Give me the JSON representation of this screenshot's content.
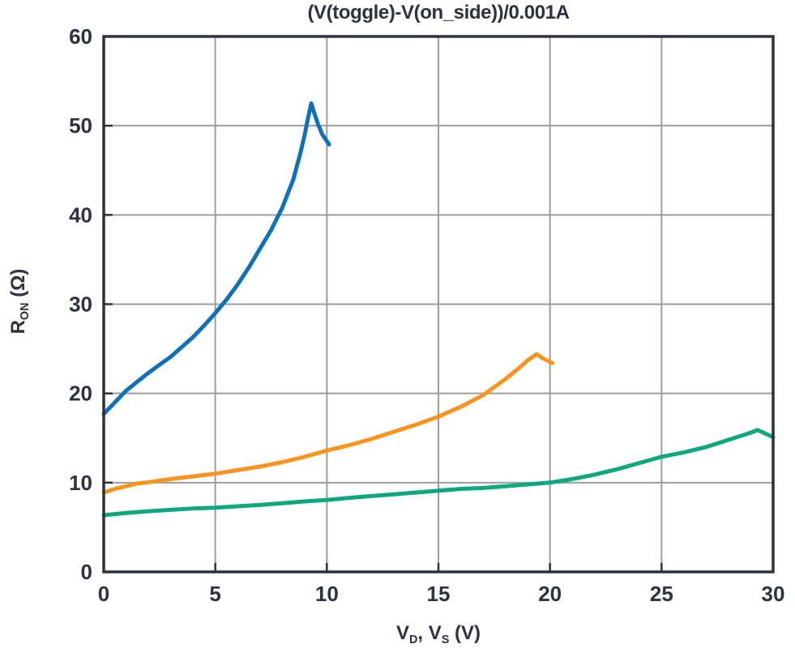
{
  "page": {
    "background": "#ffffff"
  },
  "chart_data": {
    "type": "line",
    "title": "(V(toggle)-V(on_side))/0.001A",
    "ylabel": "R_ON (Ω)",
    "xlabel": "V_D, V_S (V)",
    "ylabel_parts": {
      "v1": "R",
      "sub1": "ON",
      "unit": " (Ω)"
    },
    "xlabel_parts": {
      "v1": "V",
      "sub1": "D",
      "sep": ", ",
      "v2": "V",
      "sub2": "S",
      "unit": " (V)"
    },
    "xlim": [
      0,
      30
    ],
    "ylim": [
      0,
      60
    ],
    "xticks": [
      0,
      5,
      10,
      15,
      20,
      25,
      30
    ],
    "yticks": [
      0,
      10,
      20,
      30,
      40,
      50,
      60
    ],
    "grid": true,
    "legend": "none",
    "colors": {
      "axis": "#2b3240",
      "grid": "#9c9da0",
      "blue": "#1070b8",
      "orange": "#f79420",
      "green": "#0da87d"
    },
    "series": [
      {
        "name": "blue-curve",
        "color_key": "blue",
        "points": [
          [
            0,
            17.7
          ],
          [
            0.5,
            19.0
          ],
          [
            1,
            20.3
          ],
          [
            1.5,
            21.3
          ],
          [
            2,
            22.3
          ],
          [
            2.5,
            23.2
          ],
          [
            3,
            24.1
          ],
          [
            3.5,
            25.2
          ],
          [
            4,
            26.3
          ],
          [
            4.5,
            27.6
          ],
          [
            5,
            29.0
          ],
          [
            5.5,
            30.5
          ],
          [
            6,
            32.2
          ],
          [
            6.5,
            34.1
          ],
          [
            7,
            36.2
          ],
          [
            7.5,
            38.3
          ],
          [
            8,
            40.8
          ],
          [
            8.5,
            44.0
          ],
          [
            8.8,
            46.8
          ],
          [
            9.0,
            48.9
          ],
          [
            9.15,
            50.8
          ],
          [
            9.3,
            52.5
          ],
          [
            9.45,
            51.3
          ],
          [
            9.6,
            50.2
          ],
          [
            9.8,
            49.0
          ],
          [
            10.1,
            47.9
          ]
        ]
      },
      {
        "name": "orange-curve",
        "color_key": "orange",
        "points": [
          [
            0,
            8.9
          ],
          [
            0.5,
            9.3
          ],
          [
            1,
            9.6
          ],
          [
            1.5,
            9.9
          ],
          [
            2,
            10.05
          ],
          [
            3,
            10.4
          ],
          [
            4,
            10.7
          ],
          [
            5,
            11.0
          ],
          [
            6,
            11.4
          ],
          [
            7,
            11.8
          ],
          [
            8,
            12.3
          ],
          [
            9,
            12.9
          ],
          [
            10,
            13.6
          ],
          [
            11,
            14.2
          ],
          [
            12,
            14.9
          ],
          [
            13,
            15.7
          ],
          [
            14,
            16.5
          ],
          [
            15,
            17.4
          ],
          [
            16,
            18.5
          ],
          [
            17,
            19.8
          ],
          [
            17.5,
            20.7
          ],
          [
            18,
            21.6
          ],
          [
            18.5,
            22.6
          ],
          [
            19,
            23.7
          ],
          [
            19.4,
            24.4
          ],
          [
            19.7,
            23.9
          ],
          [
            20.1,
            23.4
          ]
        ]
      },
      {
        "name": "green-curve",
        "color_key": "green",
        "points": [
          [
            0,
            6.35
          ],
          [
            1,
            6.6
          ],
          [
            2,
            6.8
          ],
          [
            3,
            6.95
          ],
          [
            4,
            7.1
          ],
          [
            5,
            7.2
          ],
          [
            6,
            7.35
          ],
          [
            7,
            7.5
          ],
          [
            8,
            7.7
          ],
          [
            9,
            7.9
          ],
          [
            10,
            8.05
          ],
          [
            11,
            8.3
          ],
          [
            12,
            8.5
          ],
          [
            13,
            8.7
          ],
          [
            14,
            8.9
          ],
          [
            15,
            9.1
          ],
          [
            16,
            9.3
          ],
          [
            17,
            9.4
          ],
          [
            18,
            9.6
          ],
          [
            19,
            9.8
          ],
          [
            20,
            10.0
          ],
          [
            21,
            10.4
          ],
          [
            22,
            10.9
          ],
          [
            23,
            11.5
          ],
          [
            24,
            12.2
          ],
          [
            25,
            12.9
          ],
          [
            26,
            13.4
          ],
          [
            27,
            14.0
          ],
          [
            28,
            14.8
          ],
          [
            29,
            15.6
          ],
          [
            29.3,
            15.9
          ],
          [
            30,
            15.1
          ]
        ]
      }
    ]
  }
}
